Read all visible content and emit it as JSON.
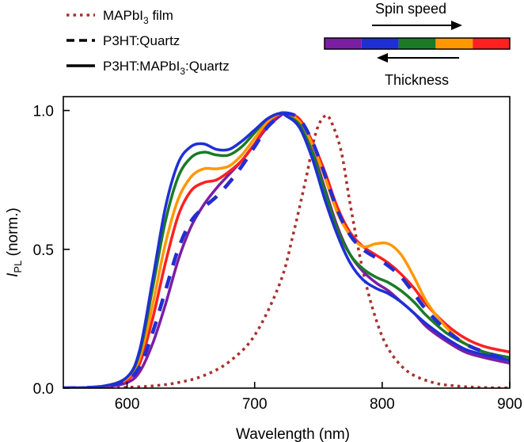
{
  "chart_data": {
    "type": "line",
    "xlabel": "Wavelength (nm)",
    "ylabel_main": "I",
    "ylabel_sub": "PL",
    "ylabel_suffix": " (norm.)",
    "xlim": [
      550,
      900
    ],
    "ylim": [
      0,
      1.05
    ],
    "xticks": [
      600,
      700,
      800,
      900
    ],
    "xtick_labels": [
      "600",
      "700",
      "800",
      "900"
    ],
    "yticks": [
      0,
      0.5,
      1.0
    ],
    "ytick_labels": [
      "0.0",
      "0.5",
      "1.0"
    ],
    "legend": [
      {
        "label_main": "MAPbI",
        "label_sub": "3",
        "label_rest": " film",
        "style": "dotted",
        "color": "#a8312e"
      },
      {
        "label_main": "P3HT:Quartz",
        "label_sub": "",
        "label_rest": "",
        "style": "dashed",
        "color": "#000000"
      },
      {
        "label_main": "P3HT:MAPbI",
        "label_sub": "3",
        "label_rest": ":Quartz",
        "style": "solid",
        "color": "#000000"
      }
    ],
    "color_bar": [
      "#7b1fa2",
      "#1f2fd6",
      "#1b7a25",
      "#ff9800",
      "#ff2020"
    ],
    "arrow_top_label": "Spin speed",
    "arrow_bottom_label": "Thickness",
    "series": [
      {
        "style": "dotted",
        "color": "#a8312e",
        "points": [
          [
            550,
            0
          ],
          [
            580,
            0
          ],
          [
            600,
            0.003
          ],
          [
            620,
            0.008
          ],
          [
            640,
            0.02
          ],
          [
            660,
            0.045
          ],
          [
            680,
            0.095
          ],
          [
            700,
            0.19
          ],
          [
            720,
            0.38
          ],
          [
            730,
            0.55
          ],
          [
            740,
            0.75
          ],
          [
            748,
            0.92
          ],
          [
            755,
            0.98
          ],
          [
            760,
            0.96
          ],
          [
            768,
            0.85
          ],
          [
            775,
            0.66
          ],
          [
            785,
            0.42
          ],
          [
            795,
            0.25
          ],
          [
            805,
            0.14
          ],
          [
            820,
            0.06
          ],
          [
            840,
            0.02
          ],
          [
            860,
            0.007
          ],
          [
            880,
            0.002
          ],
          [
            900,
            0.001
          ]
        ]
      },
      {
        "style": "dashed",
        "color": "#ff2020",
        "points": [
          [
            550,
            0
          ],
          [
            580,
            0.005
          ],
          [
            600,
            0.03
          ],
          [
            610,
            0.08
          ],
          [
            620,
            0.2
          ],
          [
            630,
            0.35
          ],
          [
            640,
            0.5
          ],
          [
            650,
            0.6
          ],
          [
            660,
            0.65
          ],
          [
            670,
            0.69
          ],
          [
            680,
            0.74
          ],
          [
            690,
            0.8
          ],
          [
            700,
            0.87
          ],
          [
            710,
            0.94
          ],
          [
            720,
            0.98
          ],
          [
            725,
            0.99
          ],
          [
            735,
            0.97
          ],
          [
            745,
            0.89
          ],
          [
            755,
            0.77
          ],
          [
            765,
            0.64
          ],
          [
            775,
            0.55
          ],
          [
            785,
            0.5
          ],
          [
            795,
            0.47
          ],
          [
            805,
            0.44
          ],
          [
            815,
            0.4
          ],
          [
            825,
            0.34
          ],
          [
            835,
            0.28
          ],
          [
            850,
            0.21
          ],
          [
            865,
            0.16
          ],
          [
            880,
            0.13
          ],
          [
            900,
            0.1
          ]
        ]
      },
      {
        "style": "solid",
        "color": "#7b1fa2",
        "points": [
          [
            550,
            0
          ],
          [
            580,
            0.004
          ],
          [
            600,
            0.02
          ],
          [
            610,
            0.06
          ],
          [
            620,
            0.16
          ],
          [
            630,
            0.3
          ],
          [
            640,
            0.46
          ],
          [
            650,
            0.58
          ],
          [
            660,
            0.66
          ],
          [
            670,
            0.72
          ],
          [
            680,
            0.77
          ],
          [
            690,
            0.82
          ],
          [
            700,
            0.88
          ],
          [
            710,
            0.94
          ],
          [
            720,
            0.98
          ],
          [
            725,
            0.99
          ],
          [
            735,
            0.96
          ],
          [
            745,
            0.86
          ],
          [
            755,
            0.72
          ],
          [
            765,
            0.58
          ],
          [
            775,
            0.48
          ],
          [
            785,
            0.42
          ],
          [
            795,
            0.38
          ],
          [
            805,
            0.35
          ],
          [
            815,
            0.31
          ],
          [
            825,
            0.27
          ],
          [
            835,
            0.22
          ],
          [
            850,
            0.17
          ],
          [
            865,
            0.13
          ],
          [
            880,
            0.11
          ],
          [
            900,
            0.09
          ]
        ]
      },
      {
        "style": "solid",
        "color": "#ff2020",
        "points": [
          [
            550,
            0
          ],
          [
            580,
            0.005
          ],
          [
            600,
            0.03
          ],
          [
            610,
            0.09
          ],
          [
            620,
            0.25
          ],
          [
            630,
            0.45
          ],
          [
            640,
            0.62
          ],
          [
            650,
            0.71
          ],
          [
            660,
            0.74
          ],
          [
            670,
            0.75
          ],
          [
            680,
            0.78
          ],
          [
            690,
            0.82
          ],
          [
            700,
            0.88
          ],
          [
            710,
            0.95
          ],
          [
            720,
            0.99
          ],
          [
            725,
            0.99
          ],
          [
            735,
            0.97
          ],
          [
            745,
            0.89
          ],
          [
            755,
            0.78
          ],
          [
            765,
            0.65
          ],
          [
            775,
            0.56
          ],
          [
            785,
            0.51
          ],
          [
            795,
            0.48
          ],
          [
            805,
            0.45
          ],
          [
            815,
            0.41
          ],
          [
            825,
            0.36
          ],
          [
            835,
            0.3
          ],
          [
            850,
            0.23
          ],
          [
            865,
            0.18
          ],
          [
            880,
            0.15
          ],
          [
            900,
            0.13
          ]
        ]
      },
      {
        "style": "solid",
        "color": "#ff9800",
        "points": [
          [
            550,
            0
          ],
          [
            580,
            0.006
          ],
          [
            600,
            0.035
          ],
          [
            610,
            0.11
          ],
          [
            620,
            0.3
          ],
          [
            630,
            0.52
          ],
          [
            640,
            0.68
          ],
          [
            650,
            0.76
          ],
          [
            660,
            0.79
          ],
          [
            670,
            0.79
          ],
          [
            680,
            0.8
          ],
          [
            690,
            0.84
          ],
          [
            700,
            0.9
          ],
          [
            710,
            0.96
          ],
          [
            720,
            0.99
          ],
          [
            725,
            0.99
          ],
          [
            735,
            0.96
          ],
          [
            745,
            0.88
          ],
          [
            755,
            0.76
          ],
          [
            765,
            0.63
          ],
          [
            775,
            0.55
          ],
          [
            785,
            0.51
          ],
          [
            795,
            0.52
          ],
          [
            805,
            0.52
          ],
          [
            815,
            0.48
          ],
          [
            825,
            0.4
          ],
          [
            835,
            0.31
          ],
          [
            850,
            0.22
          ],
          [
            865,
            0.16
          ],
          [
            880,
            0.13
          ],
          [
            900,
            0.11
          ]
        ]
      },
      {
        "style": "solid",
        "color": "#1b7a25",
        "points": [
          [
            550,
            0
          ],
          [
            580,
            0.006
          ],
          [
            600,
            0.04
          ],
          [
            610,
            0.13
          ],
          [
            620,
            0.36
          ],
          [
            630,
            0.6
          ],
          [
            640,
            0.76
          ],
          [
            650,
            0.83
          ],
          [
            660,
            0.85
          ],
          [
            670,
            0.84
          ],
          [
            680,
            0.84
          ],
          [
            690,
            0.87
          ],
          [
            700,
            0.92
          ],
          [
            710,
            0.97
          ],
          [
            720,
            0.99
          ],
          [
            725,
            0.98
          ],
          [
            735,
            0.95
          ],
          [
            745,
            0.85
          ],
          [
            755,
            0.71
          ],
          [
            765,
            0.57
          ],
          [
            775,
            0.48
          ],
          [
            785,
            0.43
          ],
          [
            795,
            0.4
          ],
          [
            805,
            0.38
          ],
          [
            815,
            0.35
          ],
          [
            825,
            0.31
          ],
          [
            835,
            0.26
          ],
          [
            850,
            0.2
          ],
          [
            865,
            0.16
          ],
          [
            880,
            0.13
          ],
          [
            900,
            0.11
          ]
        ]
      },
      {
        "style": "solid",
        "color": "#1f2fd6",
        "points": [
          [
            550,
            0
          ],
          [
            580,
            0.006
          ],
          [
            600,
            0.04
          ],
          [
            610,
            0.14
          ],
          [
            620,
            0.39
          ],
          [
            630,
            0.65
          ],
          [
            640,
            0.81
          ],
          [
            650,
            0.87
          ],
          [
            660,
            0.88
          ],
          [
            670,
            0.86
          ],
          [
            680,
            0.86
          ],
          [
            690,
            0.89
          ],
          [
            700,
            0.93
          ],
          [
            710,
            0.97
          ],
          [
            720,
            0.99
          ],
          [
            725,
            0.98
          ],
          [
            735,
            0.94
          ],
          [
            745,
            0.83
          ],
          [
            755,
            0.68
          ],
          [
            765,
            0.55
          ],
          [
            775,
            0.45
          ],
          [
            785,
            0.39
          ],
          [
            795,
            0.36
          ],
          [
            805,
            0.34
          ],
          [
            815,
            0.31
          ],
          [
            825,
            0.27
          ],
          [
            835,
            0.23
          ],
          [
            850,
            0.18
          ],
          [
            865,
            0.14
          ],
          [
            880,
            0.12
          ],
          [
            900,
            0.1
          ]
        ]
      },
      {
        "style": "dashed",
        "color": "#1f2fd6",
        "points": [
          [
            550,
            0
          ],
          [
            580,
            0.005
          ],
          [
            600,
            0.03
          ],
          [
            610,
            0.08
          ],
          [
            620,
            0.2
          ],
          [
            630,
            0.35
          ],
          [
            640,
            0.5
          ],
          [
            650,
            0.6
          ],
          [
            660,
            0.65
          ],
          [
            670,
            0.69
          ],
          [
            680,
            0.74
          ],
          [
            690,
            0.8
          ],
          [
            700,
            0.87
          ],
          [
            710,
            0.94
          ],
          [
            720,
            0.98
          ],
          [
            725,
            0.99
          ],
          [
            735,
            0.97
          ],
          [
            745,
            0.89
          ],
          [
            755,
            0.77
          ],
          [
            765,
            0.64
          ],
          [
            775,
            0.55
          ],
          [
            785,
            0.5
          ],
          [
            795,
            0.47
          ],
          [
            805,
            0.44
          ],
          [
            815,
            0.4
          ],
          [
            825,
            0.34
          ],
          [
            835,
            0.28
          ],
          [
            850,
            0.21
          ],
          [
            865,
            0.16
          ],
          [
            880,
            0.13
          ],
          [
            900,
            0.1
          ]
        ]
      }
    ]
  }
}
